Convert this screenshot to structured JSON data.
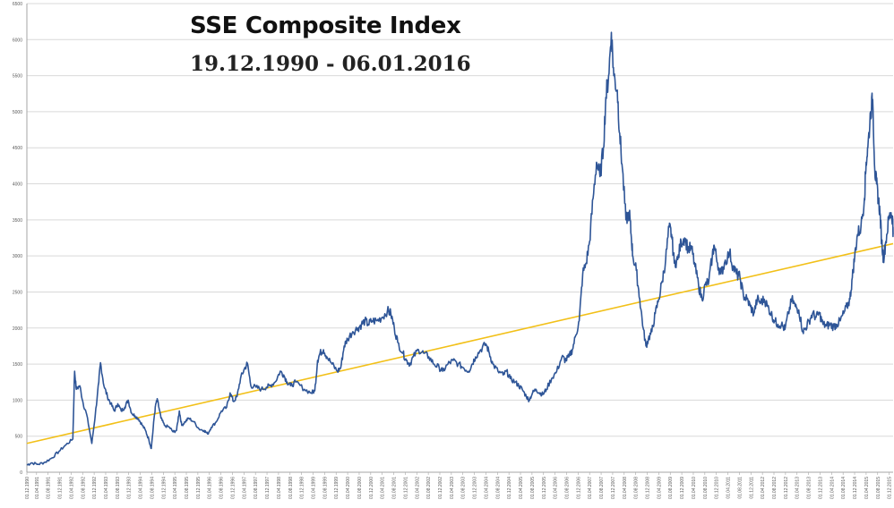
{
  "chart_data": {
    "type": "line",
    "title": "SSE Composite Index",
    "subtitle": "19.12.1990 - 06.01.2016",
    "xlabel": "",
    "ylabel": "",
    "ylim": [
      0,
      6500
    ],
    "yticks": [
      0,
      500,
      1000,
      1500,
      2000,
      2500,
      3000,
      3500,
      4000,
      4500,
      5000,
      5500,
      6000,
      6500
    ],
    "grid": "horizontal",
    "legend": "none",
    "colors": {
      "series": "#2E5597",
      "trend": "#F2C018",
      "grid": "#D9D9D9",
      "axis": "#A6A6A6"
    },
    "xtick_labels": [
      "01.12.1990",
      "01.04.1991",
      "01.08.1991",
      "01.12.1991",
      "01.04.1992",
      "01.08.1992",
      "01.12.1992",
      "01.04.1993",
      "01.08.1993",
      "01.12.1993",
      "01.04.1994",
      "01.08.1994",
      "01.12.1994",
      "01.04.1995",
      "01.08.1995",
      "01.12.1995",
      "01.04.1996",
      "01.08.1996",
      "01.12.1996",
      "01.04.1997",
      "01.08.1997",
      "01.12.1997",
      "01.04.1998",
      "01.08.1998",
      "01.12.1998",
      "01.04.1999",
      "01.08.1999",
      "01.12.1999",
      "01.04.2000",
      "01.08.2000",
      "01.12.2000",
      "01.04.2001",
      "01.08.2001",
      "01.12.2001",
      "01.04.2002",
      "01.08.2002",
      "01.12.2002",
      "01.04.2003",
      "01.08.2003",
      "01.12.2003",
      "01.04.2004",
      "01.08.2004",
      "01.12.2004",
      "01.04.2005",
      "01.08.2005",
      "01.12.2005",
      "01.04.2006",
      "01.08.2006",
      "01.12.2006",
      "01.04.2007",
      "01.08.2007",
      "01.12.2007",
      "01.04.2008",
      "01.08.2008",
      "01.12.2008",
      "01.04.2009",
      "01.08.2009",
      "01.12.2009",
      "01.04.2010",
      "01.08.2010",
      "01.12.2010",
      "01.04.2011",
      "01.08.2011",
      "01.12.2011",
      "01.04.2012",
      "01.08.2012",
      "01.12.2012",
      "01.04.2013",
      "01.08.2013",
      "01.12.2013",
      "01.04.2014",
      "01.08.2014",
      "01.12.2014",
      "01.04.2015",
      "01.08.2015",
      "01.12.2015"
    ],
    "series": [
      {
        "values": [
          [
            1990.97,
            100
          ],
          [
            1991.1,
            130
          ],
          [
            1991.3,
            110
          ],
          [
            1991.5,
            140
          ],
          [
            1991.7,
            200
          ],
          [
            1991.9,
            290
          ],
          [
            1992.1,
            380
          ],
          [
            1992.3,
            460
          ],
          [
            1992.35,
            1400
          ],
          [
            1992.4,
            1150
          ],
          [
            1992.5,
            1200
          ],
          [
            1992.6,
            950
          ],
          [
            1992.7,
            800
          ],
          [
            1992.85,
            400
          ],
          [
            1992.95,
            800
          ],
          [
            1993.05,
            1250
          ],
          [
            1993.1,
            1520
          ],
          [
            1993.2,
            1200
          ],
          [
            1993.3,
            1050
          ],
          [
            1993.4,
            950
          ],
          [
            1993.5,
            850
          ],
          [
            1993.6,
            950
          ],
          [
            1993.7,
            850
          ],
          [
            1993.8,
            900
          ],
          [
            1993.9,
            1000
          ],
          [
            1994.0,
            820
          ],
          [
            1994.1,
            780
          ],
          [
            1994.2,
            740
          ],
          [
            1994.3,
            660
          ],
          [
            1994.4,
            580
          ],
          [
            1994.5,
            450
          ],
          [
            1994.57,
            330
          ],
          [
            1994.65,
            750
          ],
          [
            1994.7,
            950
          ],
          [
            1994.75,
            1000
          ],
          [
            1994.85,
            750
          ],
          [
            1994.95,
            650
          ],
          [
            1995.1,
            620
          ],
          [
            1995.2,
            560
          ],
          [
            1995.3,
            580
          ],
          [
            1995.38,
            850
          ],
          [
            1995.45,
            650
          ],
          [
            1995.55,
            700
          ],
          [
            1995.65,
            750
          ],
          [
            1995.8,
            700
          ],
          [
            1995.95,
            600
          ],
          [
            1996.1,
            580
          ],
          [
            1996.2,
            530
          ],
          [
            1996.3,
            620
          ],
          [
            1996.45,
            700
          ],
          [
            1996.6,
            850
          ],
          [
            1996.75,
            900
          ],
          [
            1996.85,
            1100
          ],
          [
            1996.95,
            980
          ],
          [
            1997.05,
            1050
          ],
          [
            1997.15,
            1300
          ],
          [
            1997.25,
            1420
          ],
          [
            1997.35,
            1510
          ],
          [
            1997.45,
            1200
          ],
          [
            1997.6,
            1180
          ],
          [
            1997.75,
            1150
          ],
          [
            1997.9,
            1180
          ],
          [
            1998.0,
            1200
          ],
          [
            1998.15,
            1250
          ],
          [
            1998.3,
            1400
          ],
          [
            1998.4,
            1350
          ],
          [
            1998.5,
            1250
          ],
          [
            1998.6,
            1200
          ],
          [
            1998.75,
            1250
          ],
          [
            1999.0,
            1150
          ],
          [
            1999.2,
            1100
          ],
          [
            1999.3,
            1130
          ],
          [
            1999.38,
            1550
          ],
          [
            1999.45,
            1650
          ],
          [
            1999.55,
            1700
          ],
          [
            1999.65,
            1600
          ],
          [
            1999.8,
            1500
          ],
          [
            1999.95,
            1400
          ],
          [
            2000.05,
            1450
          ],
          [
            2000.15,
            1750
          ],
          [
            2000.25,
            1850
          ],
          [
            2000.4,
            1950
          ],
          [
            2000.55,
            2000
          ],
          [
            2000.65,
            2050
          ],
          [
            2000.75,
            2100
          ],
          [
            2000.85,
            2050
          ],
          [
            2000.95,
            2100
          ],
          [
            2001.1,
            2100
          ],
          [
            2001.25,
            2150
          ],
          [
            2001.4,
            2240
          ],
          [
            2001.5,
            2200
          ],
          [
            2001.6,
            2000
          ],
          [
            2001.7,
            1800
          ],
          [
            2001.85,
            1650
          ],
          [
            2001.95,
            1550
          ],
          [
            2002.05,
            1500
          ],
          [
            2002.15,
            1600
          ],
          [
            2002.3,
            1700
          ],
          [
            2002.45,
            1650
          ],
          [
            2002.6,
            1600
          ],
          [
            2002.75,
            1500
          ],
          [
            2002.9,
            1450
          ],
          [
            2003.0,
            1400
          ],
          [
            2003.15,
            1500
          ],
          [
            2003.3,
            1550
          ],
          [
            2003.45,
            1500
          ],
          [
            2003.6,
            1450
          ],
          [
            2003.75,
            1400
          ],
          [
            2003.85,
            1500
          ],
          [
            2003.95,
            1600
          ],
          [
            2004.1,
            1700
          ],
          [
            2004.25,
            1780
          ],
          [
            2004.35,
            1650
          ],
          [
            2004.45,
            1500
          ],
          [
            2004.6,
            1400
          ],
          [
            2004.75,
            1350
          ],
          [
            2004.85,
            1400
          ],
          [
            2004.95,
            1300
          ],
          [
            2005.1,
            1250
          ],
          [
            2005.2,
            1200
          ],
          [
            2005.3,
            1150
          ],
          [
            2005.42,
            1050
          ],
          [
            2005.5,
            1000
          ],
          [
            2005.6,
            1100
          ],
          [
            2005.7,
            1150
          ],
          [
            2005.8,
            1100
          ],
          [
            2005.9,
            1080
          ],
          [
            2006.0,
            1150
          ],
          [
            2006.15,
            1300
          ],
          [
            2006.3,
            1400
          ],
          [
            2006.45,
            1600
          ],
          [
            2006.55,
            1550
          ],
          [
            2006.65,
            1600
          ],
          [
            2006.75,
            1700
          ],
          [
            2006.85,
            1900
          ],
          [
            2006.95,
            2100
          ],
          [
            2007.05,
            2750
          ],
          [
            2007.15,
            2900
          ],
          [
            2007.25,
            3200
          ],
          [
            2007.35,
            3800
          ],
          [
            2007.45,
            4300
          ],
          [
            2007.55,
            4100
          ],
          [
            2007.65,
            4500
          ],
          [
            2007.72,
            5200
          ],
          [
            2007.8,
            5500
          ],
          [
            2007.88,
            6100
          ],
          [
            2007.95,
            5500
          ],
          [
            2008.05,
            5300
          ],
          [
            2008.12,
            4700
          ],
          [
            2008.2,
            4200
          ],
          [
            2008.3,
            3500
          ],
          [
            2008.4,
            3600
          ],
          [
            2008.45,
            3300
          ],
          [
            2008.5,
            3000
          ],
          [
            2008.6,
            2800
          ],
          [
            2008.7,
            2400
          ],
          [
            2008.8,
            2000
          ],
          [
            2008.88,
            1750
          ],
          [
            2008.95,
            1850
          ],
          [
            2009.05,
            1950
          ],
          [
            2009.15,
            2200
          ],
          [
            2009.25,
            2400
          ],
          [
            2009.35,
            2650
          ],
          [
            2009.45,
            2950
          ],
          [
            2009.55,
            3400
          ],
          [
            2009.62,
            3300
          ],
          [
            2009.7,
            2900
          ],
          [
            2009.8,
            2950
          ],
          [
            2009.9,
            3200
          ],
          [
            2010.0,
            3250
          ],
          [
            2010.1,
            3100
          ],
          [
            2010.2,
            3100
          ],
          [
            2010.3,
            2850
          ],
          [
            2010.4,
            2600
          ],
          [
            2010.5,
            2400
          ],
          [
            2010.6,
            2600
          ],
          [
            2010.7,
            2650
          ],
          [
            2010.8,
            3000
          ],
          [
            2010.85,
            3150
          ],
          [
            2010.95,
            2900
          ],
          [
            2011.05,
            2750
          ],
          [
            2011.15,
            2900
          ],
          [
            2011.3,
            3050
          ],
          [
            2011.4,
            2850
          ],
          [
            2011.5,
            2750
          ],
          [
            2011.6,
            2700
          ],
          [
            2011.7,
            2450
          ],
          [
            2011.8,
            2400
          ],
          [
            2011.9,
            2300
          ],
          [
            2012.0,
            2200
          ],
          [
            2012.1,
            2400
          ],
          [
            2012.2,
            2350
          ],
          [
            2012.3,
            2400
          ],
          [
            2012.4,
            2300
          ],
          [
            2012.5,
            2200
          ],
          [
            2012.6,
            2100
          ],
          [
            2012.7,
            2050
          ],
          [
            2012.8,
            2050
          ],
          [
            2012.9,
            1980
          ],
          [
            2013.0,
            2200
          ],
          [
            2013.1,
            2400
          ],
          [
            2013.2,
            2300
          ],
          [
            2013.3,
            2250
          ],
          [
            2013.42,
            1950
          ],
          [
            2013.5,
            2000
          ],
          [
            2013.6,
            2100
          ],
          [
            2013.7,
            2200
          ],
          [
            2013.8,
            2150
          ],
          [
            2013.9,
            2200
          ],
          [
            2014.0,
            2050
          ],
          [
            2014.1,
            2030
          ],
          [
            2014.2,
            2050
          ],
          [
            2014.3,
            2020
          ],
          [
            2014.4,
            2050
          ],
          [
            2014.5,
            2100
          ],
          [
            2014.6,
            2200
          ],
          [
            2014.7,
            2300
          ],
          [
            2014.78,
            2400
          ],
          [
            2014.85,
            2700
          ],
          [
            2014.92,
            3000
          ],
          [
            2015.0,
            3300
          ],
          [
            2015.1,
            3400
          ],
          [
            2015.2,
            3800
          ],
          [
            2015.25,
            4300
          ],
          [
            2015.3,
            4500
          ],
          [
            2015.38,
            5000
          ],
          [
            2015.44,
            5170
          ],
          [
            2015.5,
            4200
          ],
          [
            2015.55,
            4000
          ],
          [
            2015.6,
            3800
          ],
          [
            2015.65,
            3600
          ],
          [
            2015.7,
            3200
          ],
          [
            2015.75,
            2950
          ],
          [
            2015.82,
            3200
          ],
          [
            2015.9,
            3500
          ],
          [
            2015.97,
            3600
          ],
          [
            2016.02,
            3500
          ],
          [
            2016.03,
            3300
          ]
        ]
      },
      {
        "values": [
          [
            1990.97,
            400
          ],
          [
            2016.03,
            3170
          ]
        ]
      }
    ]
  }
}
